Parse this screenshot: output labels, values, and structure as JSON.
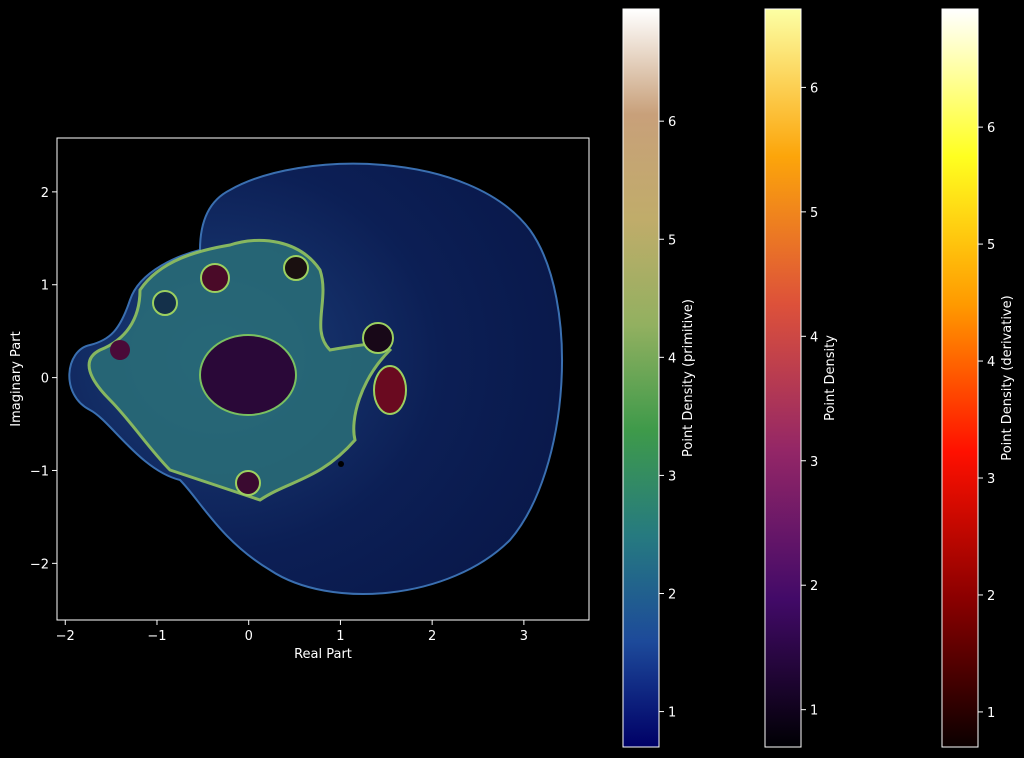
{
  "chart_data": {
    "type": "image",
    "xlabel": "Real Part",
    "ylabel": "Imaginary Part",
    "xlim": [
      -2.09,
      3.71
    ],
    "ylim": [
      -2.61,
      2.58
    ],
    "xticks": [
      {
        "value": -2,
        "label": "−2"
      },
      {
        "value": -1,
        "label": "−1"
      },
      0,
      1,
      2,
      3
    ],
    "yticks": [
      {
        "value": -2,
        "label": "−2"
      },
      {
        "value": -1,
        "label": "−1"
      },
      0,
      1,
      2
    ],
    "colorbars": [
      {
        "label": "Point Density (primitive)",
        "lim": [
          0.7,
          6.95
        ],
        "ticks": [
          1,
          2,
          3,
          4,
          5,
          6
        ],
        "colors": [
          "#000066",
          "#1d4a9a",
          "#267a80",
          "#3e9a4a",
          "#92b060",
          "#c0ac6a",
          "#c8a07a",
          "#ffffff"
        ]
      },
      {
        "label": "Point Density",
        "lim": [
          0.7,
          6.63
        ],
        "ticks": [
          1,
          2,
          3,
          4,
          5,
          6
        ],
        "colors": [
          "#000004",
          "#420a68",
          "#932667",
          "#dd513a",
          "#fca50a",
          "#fcffa4"
        ]
      },
      {
        "label": "Point Density (derivative)",
        "lim": [
          0.7,
          7.01
        ],
        "ticks": [
          1,
          2,
          3,
          4,
          5,
          6
        ],
        "colors": [
          "#0b0000",
          "#8a0000",
          "#ff1000",
          "#ff9a00",
          "#ffff20",
          "#ffffff"
        ]
      }
    ]
  }
}
